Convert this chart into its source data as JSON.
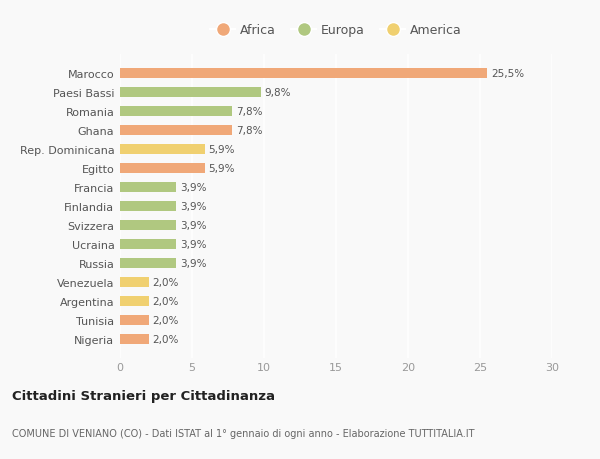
{
  "categories": [
    "Nigeria",
    "Tunisia",
    "Argentina",
    "Venezuela",
    "Russia",
    "Ucraina",
    "Svizzera",
    "Finlandia",
    "Francia",
    "Egitto",
    "Rep. Dominicana",
    "Ghana",
    "Romania",
    "Paesi Bassi",
    "Marocco"
  ],
  "values": [
    2.0,
    2.0,
    2.0,
    2.0,
    3.9,
    3.9,
    3.9,
    3.9,
    3.9,
    5.9,
    5.9,
    7.8,
    7.8,
    9.8,
    25.5
  ],
  "colors": [
    "#f0a878",
    "#f0a878",
    "#f0d070",
    "#f0d070",
    "#b0c880",
    "#b0c880",
    "#b0c880",
    "#b0c880",
    "#b0c880",
    "#f0a878",
    "#f0d070",
    "#f0a878",
    "#b0c880",
    "#b0c880",
    "#f0a878"
  ],
  "labels": [
    "2,0%",
    "2,0%",
    "2,0%",
    "2,0%",
    "3,9%",
    "3,9%",
    "3,9%",
    "3,9%",
    "3,9%",
    "5,9%",
    "5,9%",
    "7,8%",
    "7,8%",
    "9,8%",
    "25,5%"
  ],
  "legend": [
    {
      "label": "Africa",
      "color": "#f0a878"
    },
    {
      "label": "Europa",
      "color": "#b0c880"
    },
    {
      "label": "America",
      "color": "#f0d070"
    }
  ],
  "title": "Cittadini Stranieri per Cittadinanza",
  "subtitle": "COMUNE DI VENIANO (CO) - Dati ISTAT al 1° gennaio di ogni anno - Elaborazione TUTTITALIA.IT",
  "xlim": [
    0,
    30
  ],
  "xticks": [
    0,
    5,
    10,
    15,
    20,
    25,
    30
  ],
  "background_color": "#f9f9f9",
  "grid_color": "#ffffff",
  "bar_height": 0.55
}
